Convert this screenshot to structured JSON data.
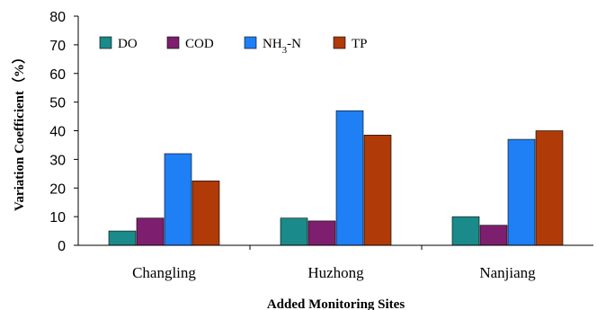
{
  "chart_data": {
    "type": "bar",
    "title": "",
    "xlabel": "Added Monitoring Sites",
    "ylabel": "Variation Coefficient（%）",
    "ylim": [
      0,
      80
    ],
    "yticks": [
      0,
      10,
      20,
      30,
      40,
      50,
      60,
      70,
      80
    ],
    "grid": false,
    "legend_position": "top-left",
    "categories": [
      "Changling",
      "Huzhong",
      "Nanjiang"
    ],
    "series": [
      {
        "name": "DO",
        "name_main": "DO",
        "name_sub": "",
        "name_tail": "",
        "color": "#1a8a8a",
        "values": [
          5,
          9.5,
          10
        ]
      },
      {
        "name": "COD",
        "name_main": "COD",
        "name_sub": "",
        "name_tail": "",
        "color": "#7d1f6e",
        "values": [
          9.5,
          8.5,
          7
        ]
      },
      {
        "name": "NH3-N",
        "name_main": "NH",
        "name_sub": "3",
        "name_tail": "-N",
        "color": "#1f7ff5",
        "values": [
          32,
          47,
          37
        ]
      },
      {
        "name": "TP",
        "name_main": "TP",
        "name_sub": "",
        "name_tail": "",
        "color": "#b03a08",
        "values": [
          22.5,
          38.5,
          40
        ]
      }
    ]
  }
}
